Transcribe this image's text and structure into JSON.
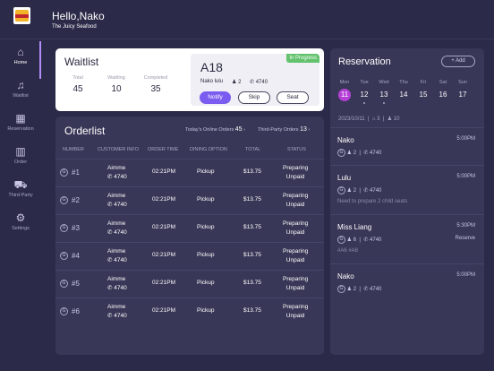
{
  "header": {
    "greeting": "Hello,Nako",
    "store": "The Juicy Seafood"
  },
  "sidebar": {
    "items": [
      {
        "label": "Home",
        "icon": "home-icon"
      },
      {
        "label": "Waitlist",
        "icon": "bell-icon"
      },
      {
        "label": "Reservation",
        "icon": "calendar-icon"
      },
      {
        "label": "Order",
        "icon": "book-icon"
      },
      {
        "label": "Third-Party",
        "icon": "car-icon"
      },
      {
        "label": "Settings",
        "icon": "gear-icon"
      }
    ]
  },
  "waitlist": {
    "title": "Waitlist",
    "stats": [
      {
        "label": "Total",
        "value": "45"
      },
      {
        "label": "Waitting",
        "value": "10"
      },
      {
        "label": "Completed",
        "value": "35"
      }
    ],
    "current": {
      "table": "A18",
      "status": "In Progress",
      "customer": "Nako lulu",
      "party": "2",
      "phone": "4740"
    },
    "buttons": {
      "notify": "Notify",
      "skip": "Skip",
      "seat": "Seat"
    }
  },
  "orderlist": {
    "title": "Orderlist",
    "online_label": "Today's Online Orders",
    "online_count": "45",
    "third_label": "Third-Party Orders",
    "third_count": "13",
    "columns": [
      "NUMBER",
      "CUSTOMER INFO",
      "ORDER TIME",
      "DINING OPTION",
      "TOTAL",
      "STATUS"
    ],
    "rows": [
      {
        "number": "#1",
        "name": "Aimme",
        "phone": "4740",
        "time": "02:21PM",
        "option": "Pickup",
        "total": "$13.75",
        "status1": "Preparing",
        "status2": "Unpaid"
      },
      {
        "number": "#2",
        "name": "Aimme",
        "phone": "4740",
        "time": "02:21PM",
        "option": "Pickup",
        "total": "$13.75",
        "status1": "Preparing",
        "status2": "Unpaid"
      },
      {
        "number": "#3",
        "name": "Aimme",
        "phone": "4740",
        "time": "02:21PM",
        "option": "Pickup",
        "total": "$13.75",
        "status1": "Preparing",
        "status2": "Unpaid"
      },
      {
        "number": "#4",
        "name": "Aimme",
        "phone": "4740",
        "time": "02:21PM",
        "option": "Pickup",
        "total": "$13.75",
        "status1": "Preparing",
        "status2": "Unpaid"
      },
      {
        "number": "#5",
        "name": "Aimme",
        "phone": "4740",
        "time": "02:21PM",
        "option": "Pickup",
        "total": "$13.75",
        "status1": "Preparing",
        "status2": "Unpaid"
      },
      {
        "number": "#6",
        "name": "Aimme",
        "phone": "4740",
        "time": "02:21PM",
        "option": "Pickup",
        "total": "$13.75",
        "status1": "Preparing",
        "status2": "Unpaid"
      }
    ]
  },
  "reservation": {
    "title": "Reservation",
    "add_label": "+ Add",
    "days": [
      {
        "name": "Mon",
        "date": "11"
      },
      {
        "name": "Tue",
        "date": "12"
      },
      {
        "name": "Wed",
        "date": "13"
      },
      {
        "name": "Thu",
        "date": "14"
      },
      {
        "name": "Fri",
        "date": "15"
      },
      {
        "name": "Sat",
        "date": "16"
      },
      {
        "name": "Sun",
        "date": "17"
      }
    ],
    "summary": {
      "date": "2023/10/11",
      "count_a": "3",
      "count_b": "10"
    },
    "items": [
      {
        "name": "Nako",
        "time": "5:00PM",
        "party": "2",
        "phone": "4740",
        "note": "",
        "status": ""
      },
      {
        "name": "Lulu",
        "time": "5:00PM",
        "party": "2",
        "phone": "4740",
        "note": "Need to prepare 2 child seats",
        "status": ""
      },
      {
        "name": "Miss Liang",
        "time": "5:30PM",
        "party": "6",
        "phone": "4740",
        "note": "#A6  #A8",
        "status": "Reserve"
      },
      {
        "name": "Nako",
        "time": "5:00PM",
        "party": "2",
        "phone": "4740",
        "note": "",
        "status": ""
      }
    ]
  },
  "colors": {
    "accent": "#7a5cf0",
    "selected_day": "#b53fd6",
    "in_progress": "#62c26d",
    "panel": "#383757",
    "background": "#2b2a48"
  }
}
